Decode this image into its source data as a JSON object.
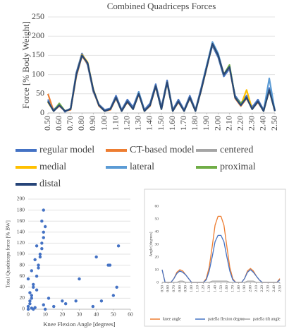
{
  "chart_data": [
    {
      "type": "line",
      "title": "Combined Quadriceps Forces",
      "y_label": "Force [% Body Weight]",
      "x": [
        0.5,
        0.55,
        0.6,
        0.65,
        0.7,
        0.75,
        0.8,
        0.85,
        0.9,
        0.95,
        1.0,
        1.05,
        1.1,
        1.15,
        1.2,
        1.25,
        1.3,
        1.35,
        1.4,
        1.45,
        1.5,
        1.55,
        1.6,
        1.65,
        1.7,
        1.75,
        1.8,
        1.85,
        1.9,
        1.95,
        2.0,
        2.05,
        2.1,
        2.15,
        2.2,
        2.25,
        2.3,
        2.35,
        2.4,
        2.45,
        2.5
      ],
      "xlim": [
        0.5,
        2.5
      ],
      "xticks": [
        {
          "value": 0.5,
          "label": "0.50"
        },
        {
          "value": 0.6,
          "label": "0.60"
        },
        {
          "value": 0.7,
          "label": "0.70"
        },
        {
          "value": 0.8,
          "label": "0.80"
        },
        {
          "value": 0.9,
          "label": "0.90"
        },
        {
          "value": 1.0,
          "label": "1.00"
        },
        {
          "value": 1.1,
          "label": "1.10"
        },
        {
          "value": 1.2,
          "label": "1.20"
        },
        {
          "value": 1.3,
          "label": "1.30"
        },
        {
          "value": 1.4,
          "label": "1.40"
        },
        {
          "value": 1.5,
          "label": "1.50"
        },
        {
          "value": 1.6,
          "label": "1.60"
        },
        {
          "value": 1.7,
          "label": "1.70"
        },
        {
          "value": 1.8,
          "label": "1.80"
        },
        {
          "value": 1.9,
          "label": "1.90"
        },
        {
          "value": 2.0,
          "label": "2.00"
        },
        {
          "value": 2.1,
          "label": "2.10"
        },
        {
          "value": 2.2,
          "label": "2.20"
        },
        {
          "value": 2.3,
          "label": "2.30"
        },
        {
          "value": 2.4,
          "label": "2.40"
        },
        {
          "value": 2.5,
          "label": "2.50"
        }
      ],
      "ylim": [
        0,
        250
      ],
      "yticks": [
        0,
        50,
        100,
        150,
        200,
        250
      ],
      "grid": true,
      "legend": "bottom",
      "series": [
        {
          "name": "regular model",
          "color": "#4472c4",
          "values": [
            35,
            8,
            22,
            3,
            12,
            105,
            155,
            125,
            55,
            22,
            8,
            12,
            45,
            8,
            35,
            15,
            55,
            8,
            25,
            75,
            15,
            85,
            8,
            35,
            8,
            45,
            8,
            65,
            125,
            175,
            145,
            95,
            115,
            45,
            25,
            45,
            15,
            35,
            8,
            65,
            8
          ]
        },
        {
          "name": "CT-based model",
          "color": "#ed7d31",
          "values": [
            50,
            5,
            18,
            5,
            8,
            95,
            148,
            128,
            58,
            18,
            5,
            8,
            38,
            5,
            28,
            10,
            48,
            5,
            18,
            68,
            10,
            78,
            5,
            28,
            5,
            38,
            5,
            58,
            118,
            182,
            152,
            102,
            118,
            38,
            18,
            38,
            10,
            28,
            5,
            58,
            5
          ]
        },
        {
          "name": "centered",
          "color": "#a5a5a5",
          "values": [
            30,
            5,
            20,
            5,
            10,
            98,
            150,
            130,
            60,
            20,
            5,
            10,
            40,
            5,
            30,
            10,
            50,
            5,
            20,
            70,
            10,
            80,
            5,
            30,
            5,
            40,
            5,
            60,
            120,
            178,
            150,
            100,
            120,
            40,
            20,
            40,
            10,
            30,
            5,
            60,
            5
          ]
        },
        {
          "name": "medial",
          "color": "#ffc000",
          "values": [
            28,
            5,
            20,
            5,
            10,
            100,
            152,
            132,
            62,
            20,
            5,
            10,
            40,
            5,
            30,
            10,
            50,
            5,
            20,
            70,
            10,
            80,
            5,
            30,
            5,
            40,
            5,
            60,
            120,
            180,
            150,
            100,
            120,
            40,
            20,
            60,
            10,
            30,
            5,
            60,
            5
          ]
        },
        {
          "name": "lateral",
          "color": "#5b9bd5",
          "values": [
            32,
            5,
            20,
            5,
            10,
            100,
            150,
            130,
            60,
            20,
            5,
            10,
            40,
            5,
            30,
            10,
            55,
            5,
            20,
            70,
            10,
            80,
            5,
            30,
            5,
            40,
            5,
            60,
            125,
            185,
            155,
            100,
            120,
            40,
            20,
            40,
            10,
            30,
            5,
            90,
            5
          ]
        },
        {
          "name": "proximal",
          "color": "#70ad47",
          "values": [
            30,
            5,
            25,
            5,
            10,
            100,
            150,
            130,
            60,
            20,
            5,
            10,
            40,
            5,
            30,
            10,
            50,
            5,
            20,
            70,
            10,
            80,
            5,
            30,
            5,
            40,
            5,
            60,
            120,
            180,
            150,
            100,
            125,
            40,
            25,
            40,
            10,
            30,
            5,
            60,
            5
          ]
        },
        {
          "name": "distal",
          "color": "#264478",
          "values": [
            30,
            5,
            20,
            5,
            10,
            100,
            150,
            130,
            60,
            20,
            5,
            10,
            40,
            5,
            30,
            10,
            50,
            5,
            20,
            70,
            10,
            80,
            5,
            30,
            5,
            40,
            5,
            60,
            120,
            180,
            150,
            100,
            120,
            40,
            20,
            40,
            10,
            30,
            5,
            60,
            5
          ]
        }
      ]
    },
    {
      "type": "scatter",
      "x_label": "Knee Flexion Angle [degrees]",
      "y_label": "Total Quadriceps force [% BW]",
      "xlim": [
        0,
        60
      ],
      "xticks": [
        0,
        10,
        20,
        30,
        40,
        50,
        60
      ],
      "ylim": [
        0,
        200
      ],
      "yticks": [
        0,
        20,
        40,
        60,
        80,
        100,
        120,
        140,
        160,
        180,
        200
      ],
      "grid": true,
      "color": "#4472c4",
      "x": [
        0,
        1,
        2,
        1,
        3,
        0,
        2,
        4,
        5,
        6,
        7,
        8,
        9,
        8,
        9,
        10,
        9,
        8,
        7,
        6,
        5,
        3,
        2,
        1,
        0,
        2,
        4,
        9,
        10,
        12,
        15,
        20,
        22,
        28,
        30,
        38,
        40,
        43,
        47,
        48,
        50,
        52,
        53,
        3,
        5
      ],
      "values": [
        5,
        10,
        20,
        30,
        40,
        55,
        70,
        90,
        115,
        80,
        100,
        120,
        140,
        160,
        180,
        150,
        130,
        110,
        95,
        75,
        60,
        45,
        25,
        15,
        0,
        2,
        3,
        8,
        0,
        20,
        5,
        15,
        10,
        15,
        55,
        5,
        95,
        15,
        80,
        80,
        25,
        40,
        115,
        0,
        35
      ]
    },
    {
      "type": "line",
      "y_label": "Angle [degrees]",
      "x": [
        0.5,
        0.55,
        0.6,
        0.65,
        0.7,
        0.75,
        0.8,
        0.85,
        0.9,
        0.95,
        1.0,
        1.05,
        1.1,
        1.15,
        1.2,
        1.25,
        1.3,
        1.35,
        1.4,
        1.45,
        1.5,
        1.55,
        1.6,
        1.65,
        1.7,
        1.75,
        1.8,
        1.85,
        1.9,
        1.95,
        2.0,
        2.05,
        2.1,
        2.15,
        2.2,
        2.25,
        2.3,
        2.35,
        2.4,
        2.45,
        2.5
      ],
      "xlim": [
        0.5,
        2.5
      ],
      "xticks": [
        {
          "value": 0.5,
          "label": "0.50"
        },
        {
          "value": 0.6,
          "label": "0.60"
        },
        {
          "value": 0.7,
          "label": "0.70"
        },
        {
          "value": 0.8,
          "label": "0.80"
        },
        {
          "value": 0.9,
          "label": "0.90"
        },
        {
          "value": 1.0,
          "label": "1.00"
        },
        {
          "value": 1.1,
          "label": "1.10"
        },
        {
          "value": 1.2,
          "label": "1.20"
        },
        {
          "value": 1.3,
          "label": "1.30"
        },
        {
          "value": 1.4,
          "label": "1.40"
        },
        {
          "value": 1.5,
          "label": "1.50"
        },
        {
          "value": 1.6,
          "label": "1.60"
        },
        {
          "value": 1.7,
          "label": "1.70"
        },
        {
          "value": 1.8,
          "label": "1.80"
        },
        {
          "value": 1.9,
          "label": "1.90"
        },
        {
          "value": 2.0,
          "label": "2.00"
        },
        {
          "value": 2.1,
          "label": "2.10"
        },
        {
          "value": 2.2,
          "label": "2.20"
        },
        {
          "value": 2.3,
          "label": "2.30"
        },
        {
          "value": 2.4,
          "label": "2.40"
        },
        {
          "value": 2.5,
          "label": "2.50"
        }
      ],
      "ylim": [
        0,
        60
      ],
      "yticks": [
        0,
        10,
        20,
        30,
        40,
        50,
        60
      ],
      "grid": false,
      "legend": "bottom",
      "series": [
        {
          "name": "knee angle",
          "color": "#ed7d31",
          "values": [
            10,
            0,
            0,
            0,
            3,
            8,
            10,
            9,
            6,
            3,
            0,
            0,
            0,
            0,
            0,
            3,
            12,
            28,
            45,
            52,
            52,
            45,
            28,
            12,
            3,
            0,
            0,
            0,
            3,
            9,
            11,
            9,
            5,
            2,
            0,
            0,
            0,
            0,
            0,
            0,
            3
          ]
        },
        {
          "name": "patella flexion degree",
          "color": "#4472c4",
          "values": [
            10,
            0,
            0,
            0,
            3,
            7,
            9,
            8,
            6,
            3,
            0,
            0,
            0,
            0,
            0,
            2,
            9,
            20,
            32,
            37,
            37,
            32,
            20,
            9,
            2,
            0,
            0,
            0,
            3,
            8,
            10,
            8,
            5,
            2,
            0,
            0,
            0,
            0,
            0,
            0,
            2
          ]
        },
        {
          "name": "patella tilt angle",
          "color": "#a5a5a5",
          "values": [
            0,
            0,
            0,
            0,
            0,
            0,
            1,
            1,
            0,
            0,
            0,
            0,
            0,
            0,
            0,
            0,
            0,
            1,
            1,
            1,
            1,
            1,
            1,
            0,
            0,
            0,
            0,
            0,
            0,
            1,
            1,
            1,
            0,
            0,
            0,
            0,
            0,
            0,
            0,
            0,
            0
          ]
        }
      ]
    }
  ]
}
